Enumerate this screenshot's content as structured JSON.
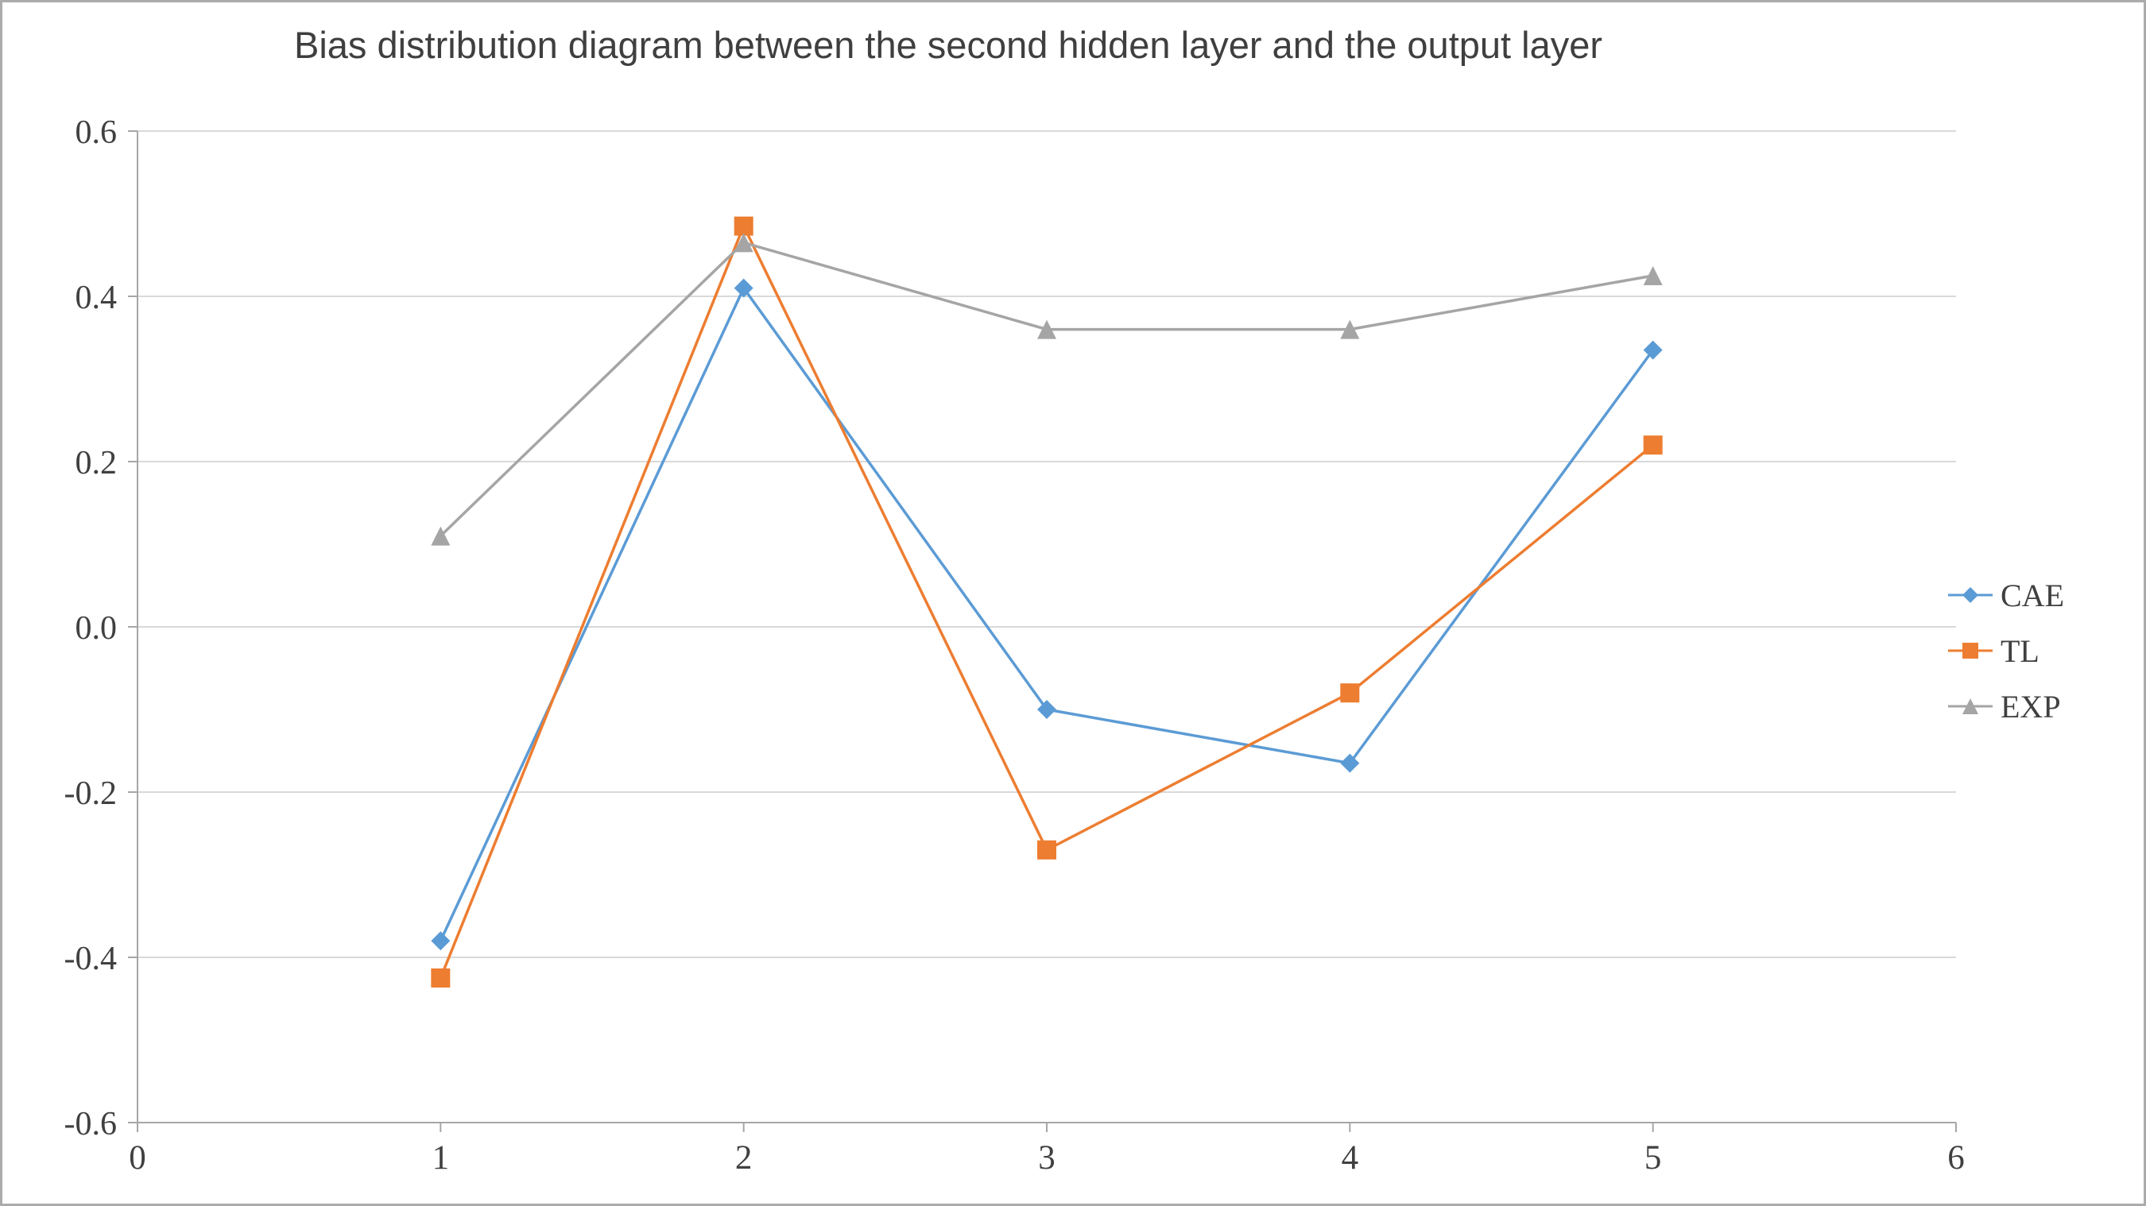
{
  "chart_data": {
    "type": "line",
    "title": "Bias distribution diagram between the second hidden layer and the output layer",
    "x": [
      1,
      2,
      3,
      4,
      5
    ],
    "series": [
      {
        "name": "CAE",
        "color": "#5B9BD5",
        "marker": "diamond",
        "values": [
          -0.38,
          0.41,
          -0.1,
          -0.165,
          0.335
        ]
      },
      {
        "name": "TL",
        "color": "#ED7D31",
        "marker": "square",
        "values": [
          -0.425,
          0.485,
          -0.27,
          -0.08,
          0.22
        ]
      },
      {
        "name": "EXP",
        "color": "#A5A5A5",
        "marker": "triangle",
        "values": [
          0.11,
          0.465,
          0.36,
          0.36,
          0.425
        ]
      }
    ],
    "xlim": [
      0,
      6
    ],
    "ylim": [
      -0.6,
      0.6
    ],
    "x_ticks": [
      0,
      1,
      2,
      3,
      4,
      5,
      6
    ],
    "y_ticks": [
      0.6,
      0.4,
      0.2,
      0.0,
      -0.2,
      -0.4,
      -0.6
    ],
    "grid": true,
    "legend_position": "right",
    "colors": {
      "gridline": "#d9d9d9",
      "axis": "#a6a6a6",
      "text": "#404040"
    }
  }
}
